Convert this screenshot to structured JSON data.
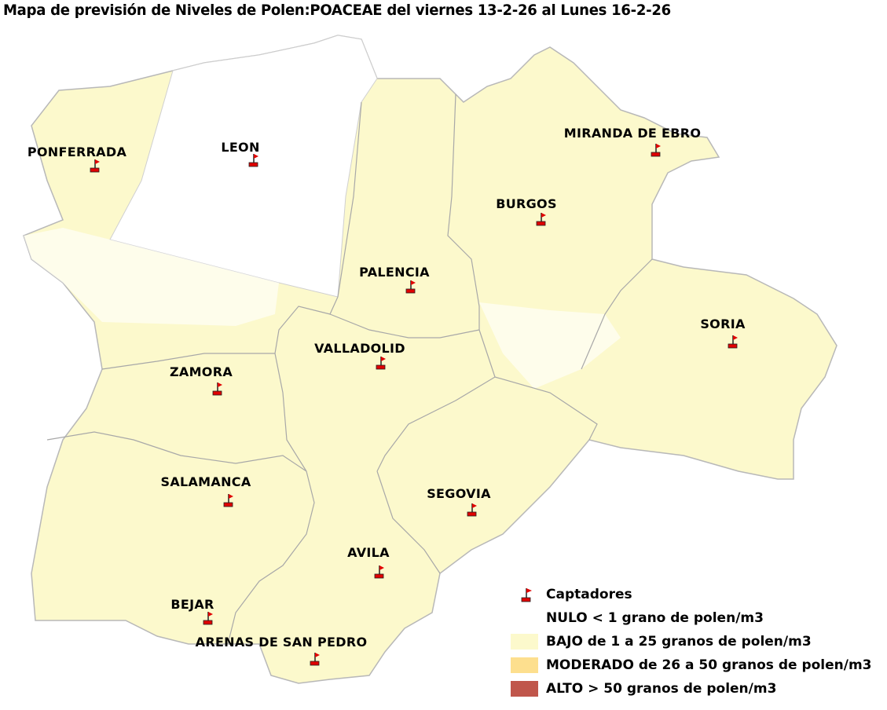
{
  "title": "Mapa de previsión de Niveles de Polen:POACEAE  del viernes 13-2-26 al Lunes 16-2-26",
  "colors": {
    "nulo": "#ffffff",
    "bajo": "#fcf9cc",
    "moderado": "#fddf8e",
    "alto": "#c0564b",
    "border": "#b0b0b0",
    "flag": "#e00000"
  },
  "cities": [
    {
      "name": "PONFERRADA",
      "level": "BAJO"
    },
    {
      "name": "LEON",
      "level": "NULO"
    },
    {
      "name": "MIRANDA DE EBRO",
      "level": "BAJO"
    },
    {
      "name": "BURGOS",
      "level": "BAJO"
    },
    {
      "name": "PALENCIA",
      "level": "BAJO"
    },
    {
      "name": "SORIA",
      "level": "BAJO"
    },
    {
      "name": "VALLADOLID",
      "level": "BAJO"
    },
    {
      "name": "ZAMORA",
      "level": "BAJO"
    },
    {
      "name": "SALAMANCA",
      "level": "BAJO"
    },
    {
      "name": "SEGOVIA",
      "level": "BAJO"
    },
    {
      "name": "AVILA",
      "level": "BAJO"
    },
    {
      "name": "BEJAR",
      "level": "BAJO"
    },
    {
      "name": "ARENAS DE SAN PEDRO",
      "level": "BAJO"
    }
  ],
  "legend": {
    "captadores": "Captadores",
    "nulo": "NULO < 1 grano de polen/m3",
    "bajo": "BAJO de 1 a 25 granos de polen/m3",
    "moderado": "MODERADO de 26 a 50 granos de polen/m3",
    "alto": "ALTO > 50 granos de polen/m3"
  },
  "icons": {
    "station": "flag-icon"
  }
}
